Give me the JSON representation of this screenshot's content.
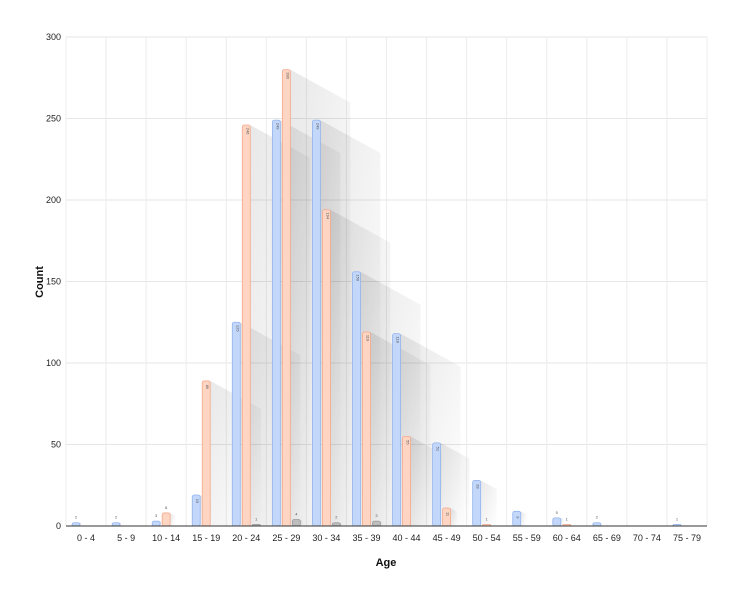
{
  "chart_data": {
    "type": "bar",
    "xlabel": "Age",
    "ylabel": "Count",
    "ylim": [
      0,
      300
    ],
    "yticks": [
      0,
      50,
      100,
      150,
      200,
      250,
      300
    ],
    "grid": true,
    "legend": "none",
    "categories": [
      "0 - 4",
      "5 - 9",
      "10 - 14",
      "15 - 19",
      "20 - 24",
      "25 - 29",
      "30 - 34",
      "35 - 39",
      "40 - 44",
      "45 - 49",
      "50 - 54",
      "55 - 59",
      "60 - 64",
      "65 - 69",
      "70 - 74",
      "75 - 79"
    ],
    "series": [
      {
        "color": "#c2d7f9",
        "stroke": "#93b4ee",
        "values": [
          2,
          2,
          3,
          19,
          125,
          249,
          249,
          156,
          118,
          51,
          28,
          9,
          5,
          2,
          0,
          1
        ]
      },
      {
        "color": "#fdd5c2",
        "stroke": "#f3a98a",
        "values": [
          0,
          0,
          8,
          89,
          246,
          280,
          194,
          119,
          55,
          11,
          1,
          0,
          1,
          0,
          0,
          0
        ]
      },
      {
        "color": "#bdbdbd",
        "stroke": "#9a9a9a",
        "values": [
          0,
          0,
          0,
          0,
          1,
          4,
          2,
          3,
          0,
          0,
          0,
          0,
          0,
          0,
          0,
          0
        ]
      }
    ]
  }
}
